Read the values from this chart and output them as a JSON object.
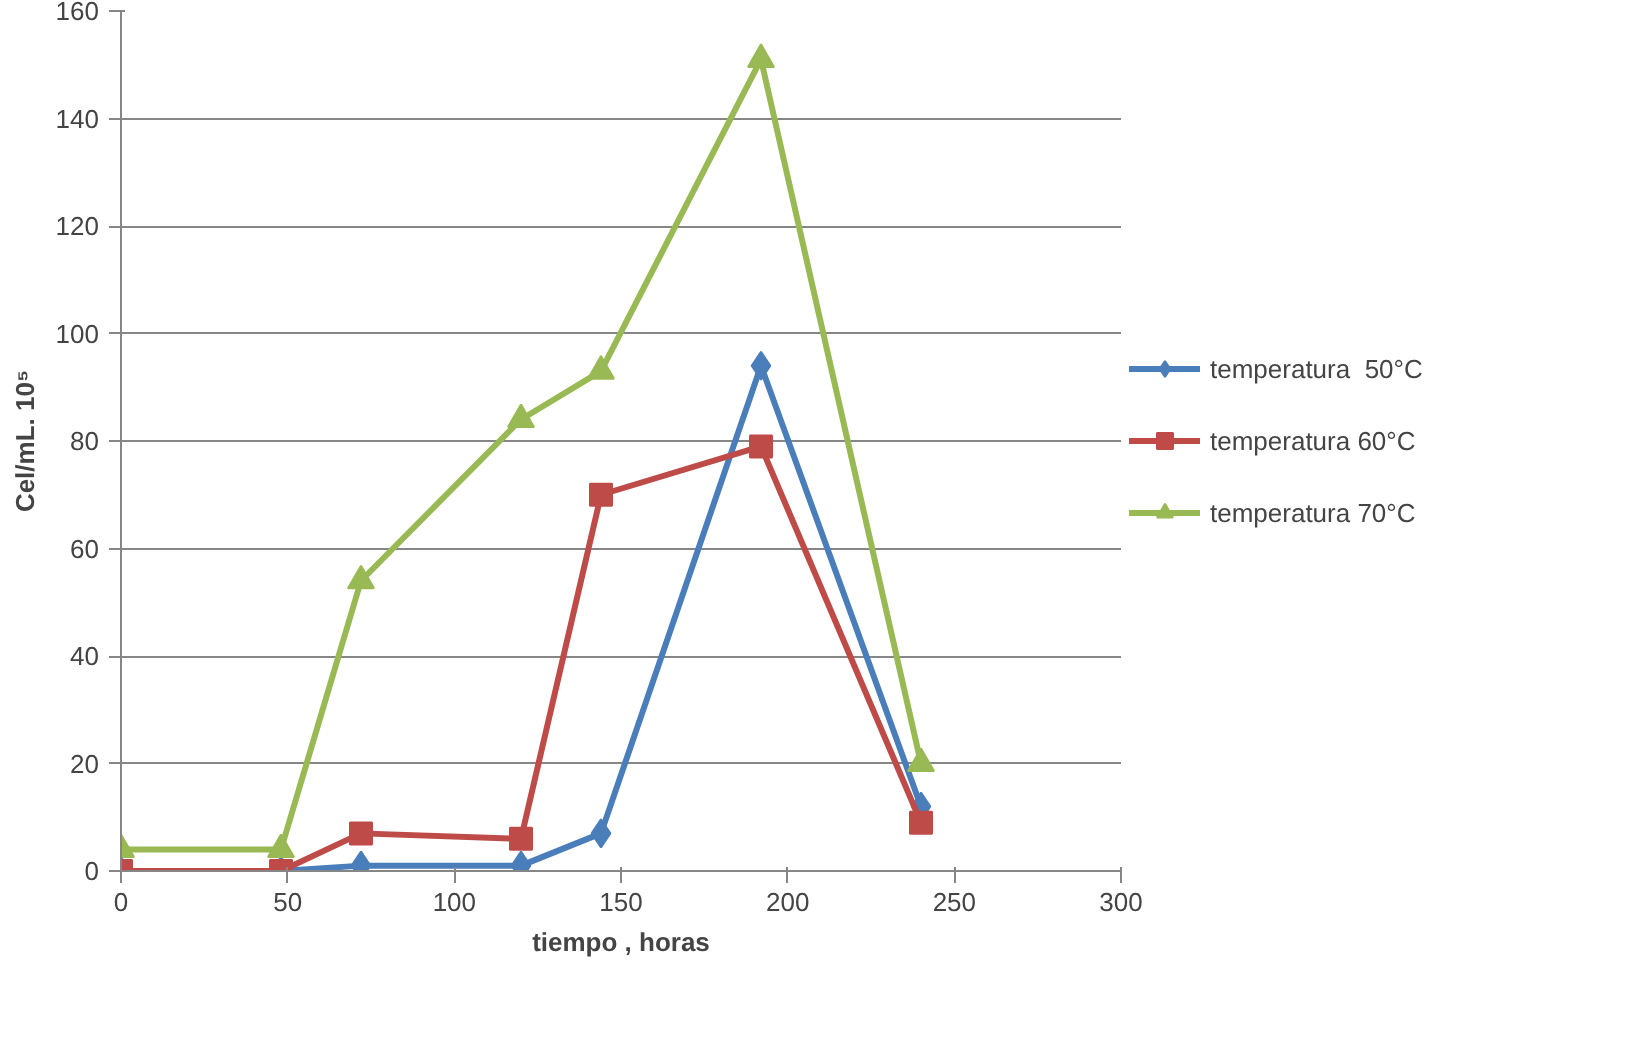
{
  "chart_data": {
    "type": "line",
    "xlabel": "tiempo , horas",
    "ylabel": "Cel/mL. 10⁵",
    "x": [
      0,
      48,
      72,
      120,
      144,
      192,
      240
    ],
    "series": [
      {
        "name": "temperatura  50°C",
        "color": "#4a7ebb",
        "marker": "diamond",
        "values": [
          0,
          0,
          1,
          1,
          7,
          94,
          12
        ]
      },
      {
        "name": "temperatura 60°C",
        "color": "#be4b48",
        "marker": "square",
        "values": [
          0,
          0,
          7,
          6,
          70,
          79,
          9
        ]
      },
      {
        "name": "temperatura 70°C",
        "color": "#98b954",
        "marker": "triangle",
        "values": [
          4,
          4,
          54,
          84,
          93,
          151,
          20
        ]
      }
    ],
    "xlim": [
      0,
      300
    ],
    "xticks": [
      0,
      50,
      100,
      150,
      200,
      250,
      300
    ],
    "ylim": [
      0,
      160
    ],
    "yticks": [
      0,
      20,
      40,
      60,
      80,
      100,
      120,
      140,
      160
    ],
    "grid": "y",
    "legend": "right",
    "line_style": "solid"
  }
}
